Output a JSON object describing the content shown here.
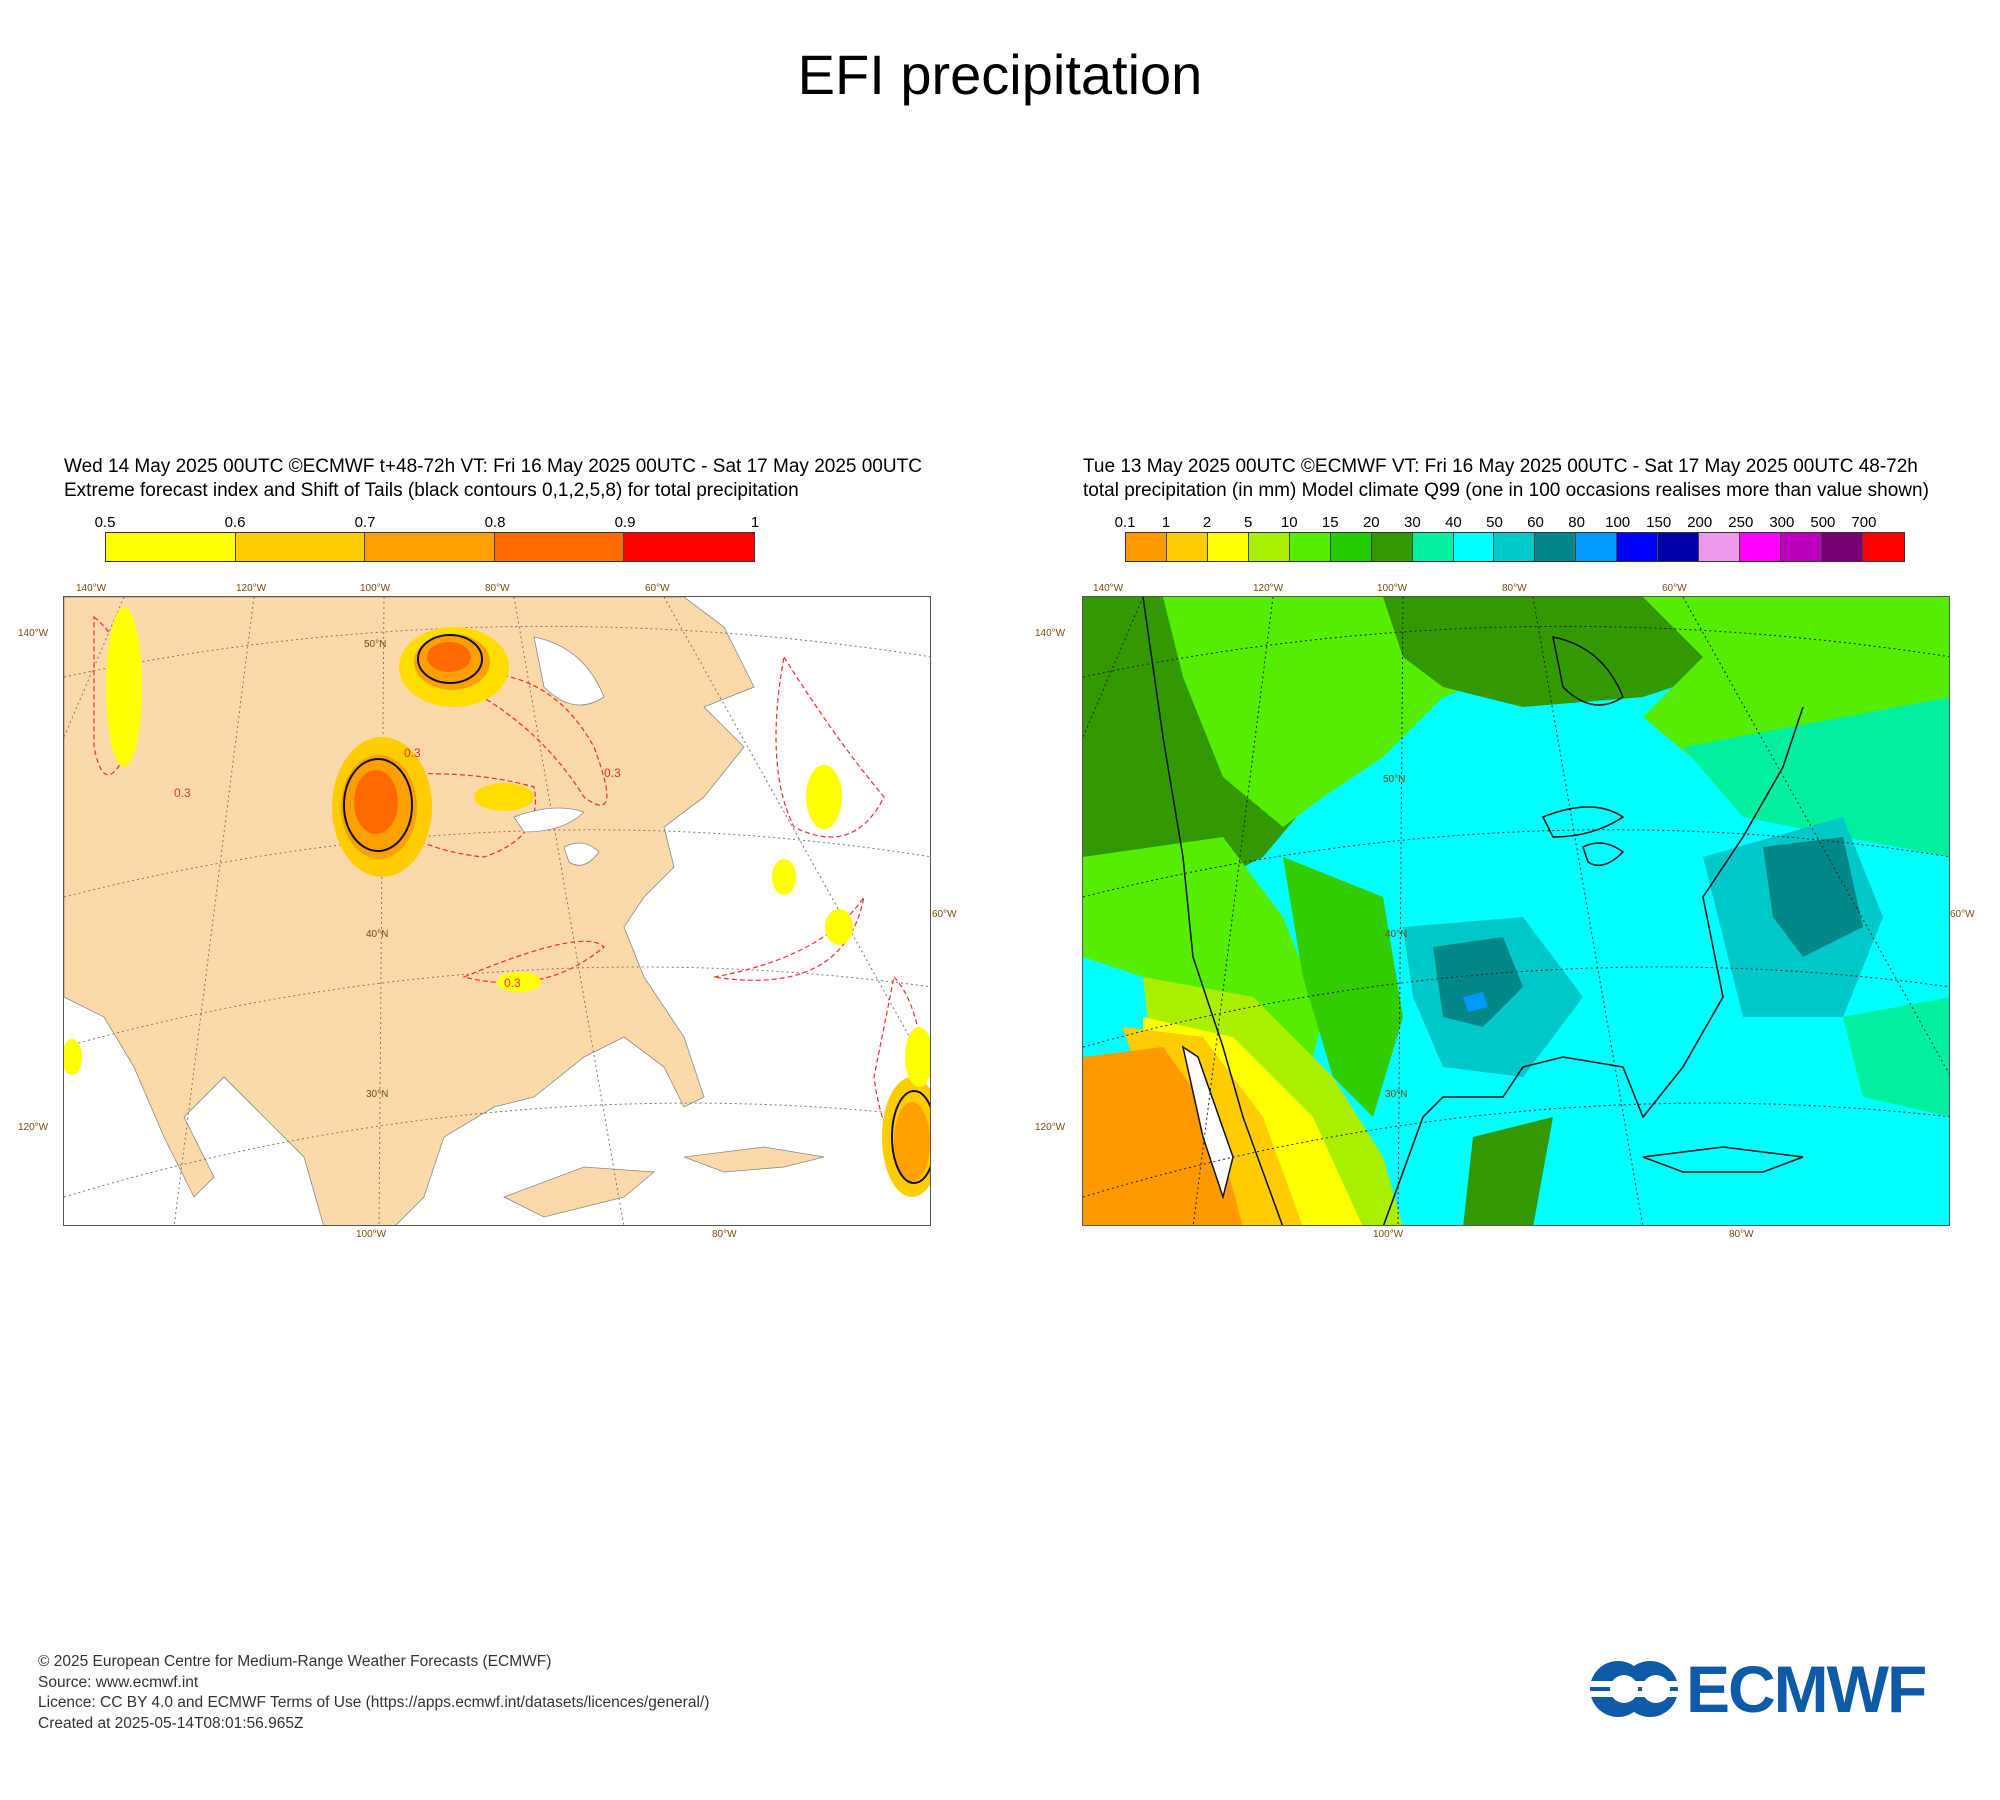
{
  "main_title": "EFI precipitation",
  "left_panel": {
    "title_line1": "Wed 14 May 2025 00UTC ©ECMWF t+48-72h  VT: Fri 16 May 2025 00UTC - Sat 17 May 2025 00UTC",
    "title_line2": "Extreme forecast index and Shift of Tails (black contours 0,1,2,5,8) for total precipitation",
    "colorbar": {
      "ticks": [
        "0.5",
        "0.6",
        "0.7",
        "0.8",
        "0.9",
        "1"
      ],
      "colors": [
        "#ffff00",
        "#ffcc00",
        "#ff9f00",
        "#ff6a00",
        "#ff0000"
      ]
    },
    "lon_labels_top": [
      "140°W",
      "120°W",
      "100°W",
      "80°W",
      "60°W"
    ],
    "lon_labels_bottom": [
      "100°W",
      "80°W"
    ],
    "lat_labels": [
      "50°N",
      "40°N",
      "30°N"
    ],
    "side_labels_left": [
      "140°W",
      "120°W"
    ],
    "side_label_right": "60°W",
    "contour_label": "0.3",
    "land_color": "#fcd9a8"
  },
  "right_panel": {
    "title_line1": "Tue 13 May 2025 00UTC ©ECMWF VT: Fri 16 May 2025 00UTC - Sat 17 May 2025 00UTC   48-72h",
    "title_line2": "total precipitation (in mm)  Model climate Q99 (one in 100 occasions realises more than value shown)",
    "colorbar": {
      "ticks": [
        "0.1",
        "1",
        "2",
        "5",
        "10",
        "15",
        "20",
        "30",
        "40",
        "50",
        "60",
        "80",
        "100",
        "150",
        "200",
        "250",
        "300",
        "500",
        "700"
      ],
      "colors": [
        "#ff9900",
        "#ffcc00",
        "#ffff00",
        "#aaee00",
        "#55ee00",
        "#22cc00",
        "#339900",
        "#00f0a0",
        "#00ffff",
        "#00c8c8",
        "#008888",
        "#0099ff",
        "#0000ff",
        "#0000aa",
        "#ee99ee",
        "#ff00ff",
        "#bb00bb",
        "#770077",
        "#ff0000"
      ]
    },
    "lon_labels_top": [
      "140°W",
      "120°W",
      "100°W",
      "80°W",
      "60°W"
    ],
    "lon_labels_bottom": [
      "100°W",
      "80°W"
    ],
    "lat_labels": [
      "50°N",
      "40°N",
      "30°N"
    ],
    "side_labels_left": [
      "140°W",
      "120°W"
    ],
    "side_label_right": "60°W"
  },
  "footer": {
    "copyright": "© 2025 European Centre for Medium-Range Weather Forecasts (ECMWF)",
    "source": "Source: www.ecmwf.int",
    "licence": "Licence: CC BY 4.0 and ECMWF Terms of Use (https://apps.ecmwf.int/datasets/licences/general/)",
    "created": "Created at 2025-05-14T08:01:56.965Z"
  },
  "logo": {
    "text": "ECMWF",
    "color": "#0d5aa7"
  }
}
